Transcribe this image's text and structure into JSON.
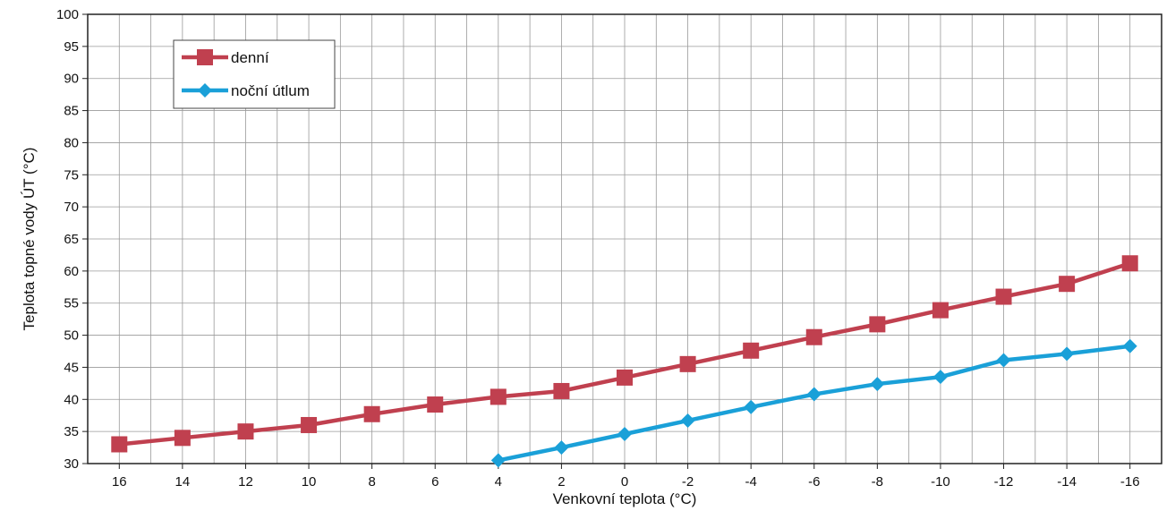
{
  "chart_data": {
    "type": "line",
    "title": "",
    "xlabel": "Venkovní teplota (°C)",
    "ylabel": "Teplota topné vody ÚT (°C)",
    "categories": [
      "16",
      "14",
      "12",
      "10",
      "8",
      "6",
      "4",
      "2",
      "0",
      "-2",
      "-4",
      "-6",
      "-8",
      "-10",
      "-12",
      "-14",
      "-16"
    ],
    "ylim": [
      30,
      100
    ],
    "yticks": [
      30,
      35,
      40,
      45,
      50,
      55,
      60,
      65,
      70,
      75,
      80,
      85,
      90,
      95,
      100
    ],
    "grid": true,
    "legend_position": "top-left",
    "series": [
      {
        "name": "denní",
        "color": "#c0404f",
        "marker": "square",
        "values": [
          33,
          34,
          35,
          36,
          37.7,
          39.2,
          40.4,
          41.3,
          43.4,
          45.5,
          47.6,
          49.7,
          51.7,
          53.9,
          56,
          58,
          61.2
        ]
      },
      {
        "name": "noční útlum",
        "color": "#1aa0d8",
        "marker": "diamond",
        "values": [
          null,
          null,
          null,
          null,
          null,
          null,
          30.5,
          32.5,
          34.6,
          36.7,
          38.8,
          40.8,
          42.4,
          43.5,
          46.1,
          47.1,
          48.3
        ]
      }
    ]
  }
}
